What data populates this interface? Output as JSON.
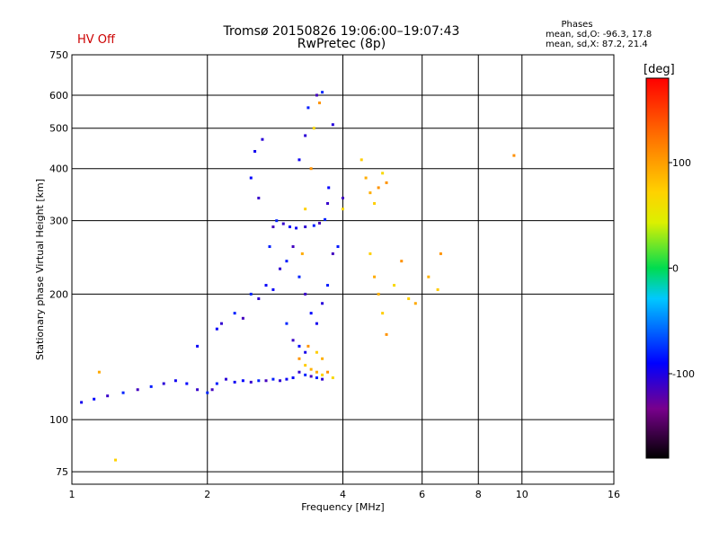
{
  "status": {
    "hv_label": "HV Off"
  },
  "header": {
    "title_line1": "Tromsø 20150826 19:06:00–19:07:43",
    "title_line2": "RwPretec (8p)"
  },
  "stats": {
    "title": "Phases",
    "o_mode": "mean, sd,O: -96.3, 17.8",
    "x_mode": "mean, sd,X:  87.2, 21.4"
  },
  "colorbar": {
    "unit": "[deg]",
    "range": [
      -180,
      180
    ],
    "ticks": [
      "100",
      "0",
      "-100"
    ]
  },
  "chart_data": {
    "type": "scatter",
    "title": "Tromsø 20150826 19:06:00–19:07:43",
    "subtitle": "RwPretec (8p)",
    "xlabel": "Frequency [MHz]",
    "ylabel": "Stationary phase Virtual Height [km]",
    "xscale": "log",
    "yscale": "log",
    "xlim": [
      1,
      16
    ],
    "ylim": [
      70,
      750
    ],
    "xticks": [
      "1",
      "2",
      "4",
      "6",
      "8",
      "10",
      "16"
    ],
    "yticks": [
      "75",
      "100",
      "200",
      "300",
      "400",
      "500",
      "600",
      "750"
    ],
    "grid": true,
    "color_by": "phase [deg]",
    "series": [
      {
        "mode": "O",
        "phase_mean": -96.3,
        "phase_sd": 17.8,
        "points": [
          [
            1.05,
            110
          ],
          [
            1.12,
            112
          ],
          [
            1.2,
            114
          ],
          [
            1.3,
            116
          ],
          [
            1.4,
            118
          ],
          [
            1.5,
            120
          ],
          [
            1.6,
            122
          ],
          [
            1.7,
            124
          ],
          [
            1.8,
            122
          ],
          [
            1.9,
            118
          ],
          [
            2.0,
            116
          ],
          [
            2.05,
            118
          ],
          [
            2.1,
            122
          ],
          [
            2.2,
            125
          ],
          [
            2.3,
            123
          ],
          [
            2.4,
            124
          ],
          [
            2.5,
            123
          ],
          [
            2.6,
            124
          ],
          [
            2.7,
            124
          ],
          [
            2.8,
            125
          ],
          [
            2.9,
            124
          ],
          [
            3.0,
            125
          ],
          [
            3.1,
            126
          ],
          [
            3.2,
            130
          ],
          [
            3.3,
            128
          ],
          [
            3.4,
            127
          ],
          [
            3.5,
            126
          ],
          [
            3.6,
            125
          ],
          [
            1.9,
            150
          ],
          [
            2.1,
            165
          ],
          [
            2.15,
            170
          ],
          [
            2.3,
            180
          ],
          [
            2.4,
            175
          ],
          [
            2.5,
            200
          ],
          [
            2.6,
            195
          ],
          [
            2.7,
            210
          ],
          [
            2.8,
            205
          ],
          [
            2.9,
            230
          ],
          [
            2.75,
            260
          ],
          [
            2.8,
            290
          ],
          [
            2.85,
            300
          ],
          [
            2.95,
            295
          ],
          [
            3.05,
            290
          ],
          [
            3.15,
            288
          ],
          [
            3.3,
            290
          ],
          [
            3.45,
            292
          ],
          [
            3.55,
            296
          ],
          [
            3.65,
            302
          ],
          [
            3.7,
            330
          ],
          [
            3.72,
            360
          ],
          [
            3.2,
            420
          ],
          [
            3.3,
            480
          ],
          [
            3.35,
            560
          ],
          [
            3.5,
            600
          ],
          [
            3.6,
            610
          ],
          [
            2.6,
            340
          ],
          [
            2.5,
            380
          ],
          [
            2.55,
            440
          ],
          [
            2.65,
            470
          ],
          [
            3.0,
            240
          ],
          [
            3.1,
            260
          ],
          [
            3.2,
            220
          ],
          [
            3.3,
            200
          ],
          [
            3.4,
            180
          ],
          [
            3.5,
            170
          ],
          [
            3.6,
            190
          ],
          [
            3.7,
            210
          ],
          [
            3.8,
            250
          ],
          [
            3.0,
            170
          ],
          [
            3.1,
            155
          ],
          [
            3.2,
            150
          ],
          [
            3.3,
            145
          ],
          [
            3.8,
            510
          ],
          [
            3.9,
            260
          ],
          [
            4.0,
            340
          ]
        ]
      },
      {
        "mode": "X",
        "phase_mean": 87.2,
        "phase_sd": 21.4,
        "points": [
          [
            3.2,
            140
          ],
          [
            3.3,
            135
          ],
          [
            3.4,
            132
          ],
          [
            3.5,
            130
          ],
          [
            3.6,
            128
          ],
          [
            3.7,
            130
          ],
          [
            3.8,
            126
          ],
          [
            3.35,
            150
          ],
          [
            3.5,
            145
          ],
          [
            3.6,
            140
          ],
          [
            3.25,
            250
          ],
          [
            3.3,
            320
          ],
          [
            3.4,
            400
          ],
          [
            3.45,
            500
          ],
          [
            3.55,
            575
          ],
          [
            4.4,
            420
          ],
          [
            4.5,
            380
          ],
          [
            4.6,
            350
          ],
          [
            4.7,
            330
          ],
          [
            4.8,
            360
          ],
          [
            4.9,
            390
          ],
          [
            5.0,
            370
          ],
          [
            4.6,
            250
          ],
          [
            4.7,
            220
          ],
          [
            4.8,
            200
          ],
          [
            4.9,
            180
          ],
          [
            5.0,
            160
          ],
          [
            5.2,
            210
          ],
          [
            5.4,
            240
          ],
          [
            5.6,
            195
          ],
          [
            5.8,
            190
          ],
          [
            6.2,
            220
          ],
          [
            6.5,
            205
          ],
          [
            6.6,
            250
          ],
          [
            4.0,
            320
          ],
          [
            9.6,
            430
          ],
          [
            1.25,
            80
          ],
          [
            1.15,
            130
          ]
        ]
      }
    ]
  }
}
